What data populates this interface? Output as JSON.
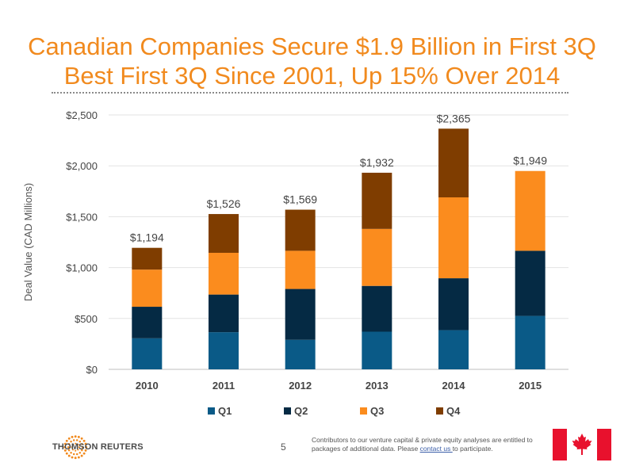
{
  "title": {
    "line1": "Canadian Companies Secure $1.9 Billion in First 3Q",
    "line2": "Best First 3Q Since 2001, Up 15% Over 2014"
  },
  "chart_data": {
    "type": "bar",
    "stacked": true,
    "categories": [
      "2010",
      "2011",
      "2012",
      "2013",
      "2014",
      "2015"
    ],
    "series": [
      {
        "name": "Q1",
        "color": "#0a5a87",
        "values": [
          305,
          365,
          290,
          370,
          385,
          525
        ]
      },
      {
        "name": "Q2",
        "color": "#052a44",
        "values": [
          310,
          370,
          500,
          450,
          510,
          640
        ]
      },
      {
        "name": "Q3",
        "color": "#fb8c1e",
        "values": [
          365,
          410,
          375,
          560,
          795,
          784
        ]
      },
      {
        "name": "Q4",
        "color": "#7f3d00",
        "values": [
          214,
          381,
          404,
          552,
          675,
          0
        ]
      }
    ],
    "totals": [
      "$1,194",
      "$1,526",
      "$1,569",
      "$1,932",
      "$2,365",
      "$1,949"
    ],
    "total_values": [
      1194,
      1526,
      1569,
      1932,
      2365,
      1949
    ],
    "ylabel": "Deal Value (CAD Millions)",
    "xlabel": "",
    "ylim": [
      0,
      2500
    ],
    "yticks": [
      0,
      500,
      1000,
      1500,
      2000,
      2500
    ],
    "ytick_labels": [
      "$0",
      "$500",
      "$1,000",
      "$1,500",
      "$2,000",
      "$2,500"
    ],
    "grid": true,
    "legend_position": "bottom"
  },
  "footer": {
    "brand": "THOMSON REUTERS",
    "page_number": "5",
    "contrib_before": "Contributors to our venture capital & private equity analyses are entitled to packages of additional data. Please ",
    "contrib_link": "contact us ",
    "contrib_after": "to participate."
  },
  "colors": {
    "title": "#f18a1e",
    "flag_red": "#e8112d"
  }
}
